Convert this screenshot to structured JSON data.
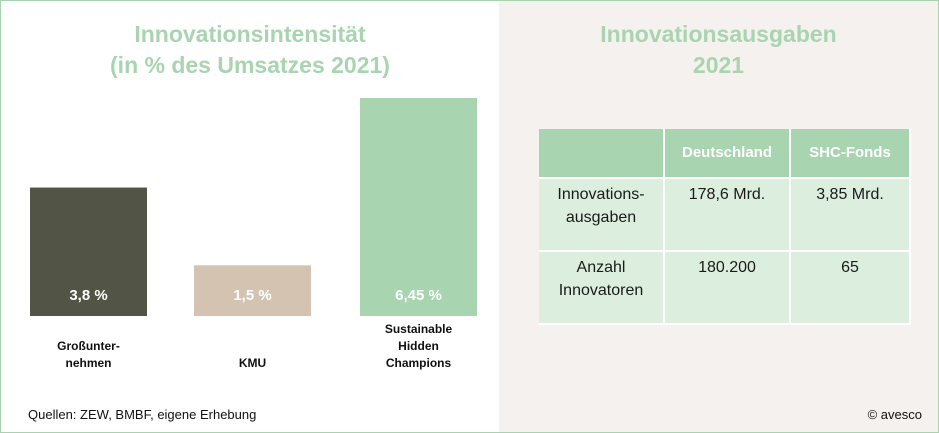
{
  "left_title": [
    "Innovationsintensität",
    "(in % des Umsatzes 2021)"
  ],
  "right_title": [
    "Innovationsausgaben",
    "2021"
  ],
  "chart_data": {
    "type": "bar",
    "title": "Innovationsintensität (in % des Umsatzes 2021)",
    "categories": [
      [
        "Großunter-",
        "nehmen"
      ],
      [
        "KMU"
      ],
      [
        "Sustainable",
        "Hidden",
        "Champions"
      ]
    ],
    "values": [
      3.8,
      1.5,
      6.45
    ],
    "value_labels": [
      "3,8 %",
      "1,5 %",
      "6,45 %"
    ],
    "colors": [
      "#525446",
      "#d3c3b0",
      "#a8d5b0"
    ],
    "value_label_color": "#ffffff",
    "ylim": [
      0,
      6.45
    ],
    "grid": false,
    "axes_visible": false
  },
  "table": {
    "headers": [
      "",
      "Deutschland",
      "SHC-Fonds"
    ],
    "rows": [
      {
        "label": [
          "Innovations-",
          "ausgaben"
        ],
        "values": [
          "178,6 Mrd.",
          "3,85 Mrd."
        ]
      },
      {
        "label": [
          "Anzahl",
          "Innovatoren"
        ],
        "values": [
          "180.200",
          "65"
        ]
      }
    ]
  },
  "footer": {
    "source": "Quellen: ZEW, BMBF, eigene Erhebung",
    "copyright": "© avesco"
  }
}
